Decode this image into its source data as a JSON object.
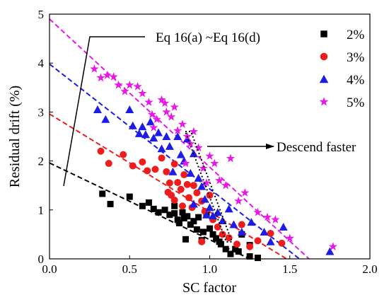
{
  "chart_data": {
    "type": "scatter",
    "xlabel": "SC factor",
    "ylabel": "Residual drift (%)",
    "xlim": [
      0,
      2
    ],
    "ylim": [
      0,
      5
    ],
    "x_ticks": [
      "0.0",
      "0.5",
      "1.0",
      "1.5",
      "2.0"
    ],
    "y_ticks": [
      "0",
      "1",
      "2",
      "3",
      "4",
      "5"
    ],
    "legend_position": "top-right",
    "series": [
      {
        "name": "2%",
        "marker": "square",
        "color": "#000000",
        "points": [
          [
            0.33,
            1.33
          ],
          [
            0.38,
            1.12
          ],
          [
            0.5,
            1.27
          ],
          [
            0.58,
            1.08
          ],
          [
            0.62,
            1.15
          ],
          [
            0.65,
            1.02
          ],
          [
            0.68,
            0.95
          ],
          [
            0.72,
            1.0
          ],
          [
            0.75,
            0.9
          ],
          [
            0.78,
            0.93
          ],
          [
            0.78,
            1.08
          ],
          [
            0.8,
            0.8
          ],
          [
            0.81,
            0.73
          ],
          [
            0.83,
            0.95
          ],
          [
            0.84,
            0.83
          ],
          [
            0.86,
            0.87
          ],
          [
            0.88,
            0.7
          ],
          [
            0.9,
            0.77
          ],
          [
            0.92,
            0.6
          ],
          [
            0.93,
            0.85
          ],
          [
            0.96,
            0.55
          ],
          [
            0.98,
            0.9
          ],
          [
            1.0,
            0.62
          ],
          [
            1.02,
            0.5
          ],
          [
            1.04,
            0.42
          ],
          [
            1.07,
            0.3
          ],
          [
            1.1,
            0.2
          ],
          [
            1.13,
            0.1
          ],
          [
            1.18,
            0.15
          ],
          [
            1.25,
            0.05
          ],
          [
            1.3,
            0.02
          ],
          [
            0.85,
            0.4
          ],
          [
            0.95,
            0.38
          ],
          [
            1.06,
            0.35
          ],
          [
            1.16,
            0.2
          ],
          [
            1.2,
            0.5
          ],
          [
            1.25,
            0.28
          ]
        ]
      },
      {
        "name": "3%",
        "marker": "circle",
        "color": "#ee1c1c",
        "points": [
          [
            0.32,
            2.2
          ],
          [
            0.37,
            1.95
          ],
          [
            0.46,
            2.13
          ],
          [
            0.52,
            1.9
          ],
          [
            0.58,
            1.98
          ],
          [
            0.61,
            1.8
          ],
          [
            0.66,
            1.83
          ],
          [
            0.7,
            2.06
          ],
          [
            0.73,
            1.78
          ],
          [
            0.74,
            1.36
          ],
          [
            0.75,
            1.55
          ],
          [
            0.76,
            1.3
          ],
          [
            0.78,
            1.94
          ],
          [
            0.8,
            1.56
          ],
          [
            0.82,
            1.42
          ],
          [
            0.83,
            1.08
          ],
          [
            0.84,
            1.72
          ],
          [
            0.87,
            1.25
          ],
          [
            0.89,
            1.05
          ],
          [
            0.9,
            1.5
          ],
          [
            0.92,
            1.35
          ],
          [
            0.95,
            1.18
          ],
          [
            0.97,
            0.97
          ],
          [
            1.0,
            1.3
          ],
          [
            1.02,
            0.8
          ],
          [
            1.05,
            0.65
          ],
          [
            1.08,
            0.5
          ],
          [
            1.12,
            0.43
          ],
          [
            1.17,
            0.3
          ],
          [
            1.2,
            0.7
          ],
          [
            1.25,
            0.25
          ],
          [
            1.3,
            0.37
          ],
          [
            1.38,
            0.52
          ],
          [
            1.45,
            0.32
          ],
          [
            0.95,
            0.35
          ],
          [
            0.78,
            1.2
          ],
          [
            0.86,
            1.52
          ]
        ]
      },
      {
        "name": "4%",
        "marker": "triangle",
        "color": "#1c1ce6",
        "points": [
          [
            0.3,
            3.05
          ],
          [
            0.35,
            2.85
          ],
          [
            0.5,
            3.05
          ],
          [
            0.52,
            2.72
          ],
          [
            0.56,
            2.56
          ],
          [
            0.58,
            2.7
          ],
          [
            0.6,
            2.54
          ],
          [
            0.63,
            2.8
          ],
          [
            0.65,
            2.47
          ],
          [
            0.68,
            2.58
          ],
          [
            0.7,
            2.25
          ],
          [
            0.73,
            2.5
          ],
          [
            0.75,
            2.3
          ],
          [
            0.8,
            2.5
          ],
          [
            0.82,
            2.13
          ],
          [
            0.84,
            2.0
          ],
          [
            0.86,
            2.45
          ],
          [
            0.88,
            1.75
          ],
          [
            0.9,
            2.15
          ],
          [
            0.93,
            1.65
          ],
          [
            0.95,
            1.48
          ],
          [
            0.97,
            1.22
          ],
          [
            1.0,
            1.05
          ],
          [
            1.02,
            0.88
          ],
          [
            1.05,
            0.95
          ],
          [
            1.08,
            0.78
          ],
          [
            1.12,
            1.02
          ],
          [
            1.15,
            0.7
          ],
          [
            1.2,
            0.55
          ],
          [
            1.26,
            0.75
          ],
          [
            1.34,
            0.55
          ],
          [
            1.38,
            0.35
          ],
          [
            1.46,
            0.65
          ],
          [
            1.75,
            0.15
          ],
          [
            0.9,
            1.12
          ],
          [
            0.98,
            0.9
          ],
          [
            0.77,
            1.78
          ]
        ]
      },
      {
        "name": "5%",
        "marker": "star",
        "color": "#e619e6",
        "points": [
          [
            0.28,
            3.88
          ],
          [
            0.32,
            3.7
          ],
          [
            0.36,
            3.75
          ],
          [
            0.4,
            3.72
          ],
          [
            0.43,
            3.55
          ],
          [
            0.47,
            3.42
          ],
          [
            0.5,
            3.55
          ],
          [
            0.55,
            3.52
          ],
          [
            0.58,
            3.38
          ],
          [
            0.62,
            3.2
          ],
          [
            0.64,
            2.95
          ],
          [
            0.67,
            2.85
          ],
          [
            0.7,
            3.25
          ],
          [
            0.73,
            3.0
          ],
          [
            0.76,
            2.9
          ],
          [
            0.78,
            3.1
          ],
          [
            0.8,
            2.62
          ],
          [
            0.83,
            2.75
          ],
          [
            0.86,
            2.5
          ],
          [
            0.88,
            2.35
          ],
          [
            0.9,
            2.6
          ],
          [
            0.93,
            2.27
          ],
          [
            0.96,
            1.85
          ],
          [
            1.0,
            2.1
          ],
          [
            1.03,
            1.95
          ],
          [
            1.06,
            1.6
          ],
          [
            1.1,
            1.5
          ],
          [
            1.13,
            2.05
          ],
          [
            1.18,
            1.18
          ],
          [
            1.22,
            1.35
          ],
          [
            1.3,
            0.95
          ],
          [
            1.36,
            0.85
          ],
          [
            1.41,
            0.8
          ],
          [
            1.5,
            0.42
          ],
          [
            1.77,
            0.25
          ],
          [
            0.65,
            2.68
          ],
          [
            0.72,
            3.18
          ],
          [
            0.85,
            1.95
          ],
          [
            0.98,
            1.55
          ]
        ]
      }
    ],
    "fit_lines": [
      {
        "series": "2%",
        "x": [
          0.0,
          1.25
        ],
        "y": [
          1.96,
          0.0
        ]
      },
      {
        "series": "3%",
        "x": [
          0.0,
          1.48
        ],
        "y": [
          2.96,
          0.0
        ]
      },
      {
        "series": "4%",
        "x": [
          0.0,
          1.56
        ],
        "y": [
          3.98,
          0.0
        ]
      },
      {
        "series": "5%",
        "x": [
          0.0,
          1.62
        ],
        "y": [
          4.9,
          0.0
        ]
      }
    ],
    "annotations": {
      "eq_label": "Eq 16(a) ~Eq 16(d)",
      "descend_label": "Descend faster"
    }
  }
}
